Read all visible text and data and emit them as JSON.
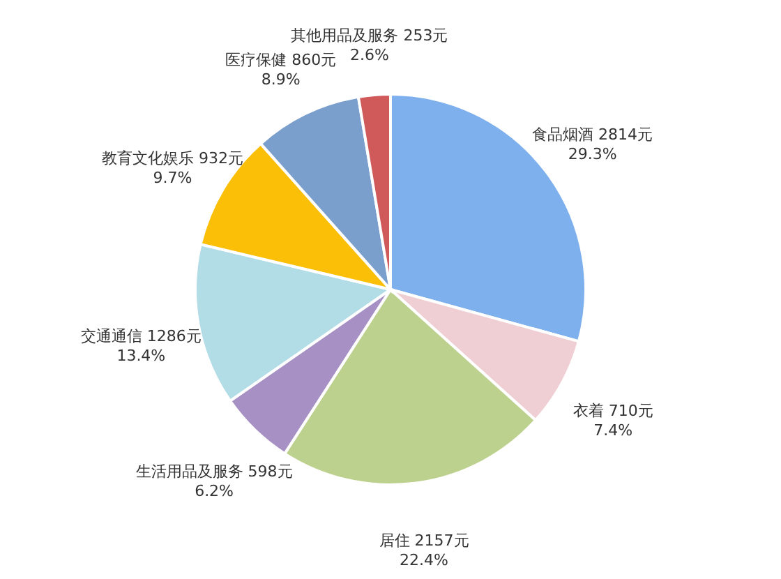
{
  "chart_data": {
    "type": "pie",
    "categories": [
      "食品烟酒",
      "衣着",
      "居住",
      "生活用品及服务",
      "交通通信",
      "教育文化娱乐",
      "医疗保健",
      "其他用品及服务"
    ],
    "values": [
      2814,
      710,
      2157,
      598,
      1286,
      932,
      860,
      253
    ],
    "value_labels": [
      "2814元 29.3%",
      "710元 7.4%",
      "2157元 22.4%",
      "598元 6.2%",
      "1286元 13.4%",
      "932元 9.7%",
      "860元 8.9%",
      "253元 2.6%"
    ],
    "colors": [
      "#7fb0ee",
      "#efcfd3",
      "#bdd18e",
      "#a790c4",
      "#b2dce6",
      "#fbbf08",
      "#7a9fcc",
      "#d05a5a"
    ]
  }
}
